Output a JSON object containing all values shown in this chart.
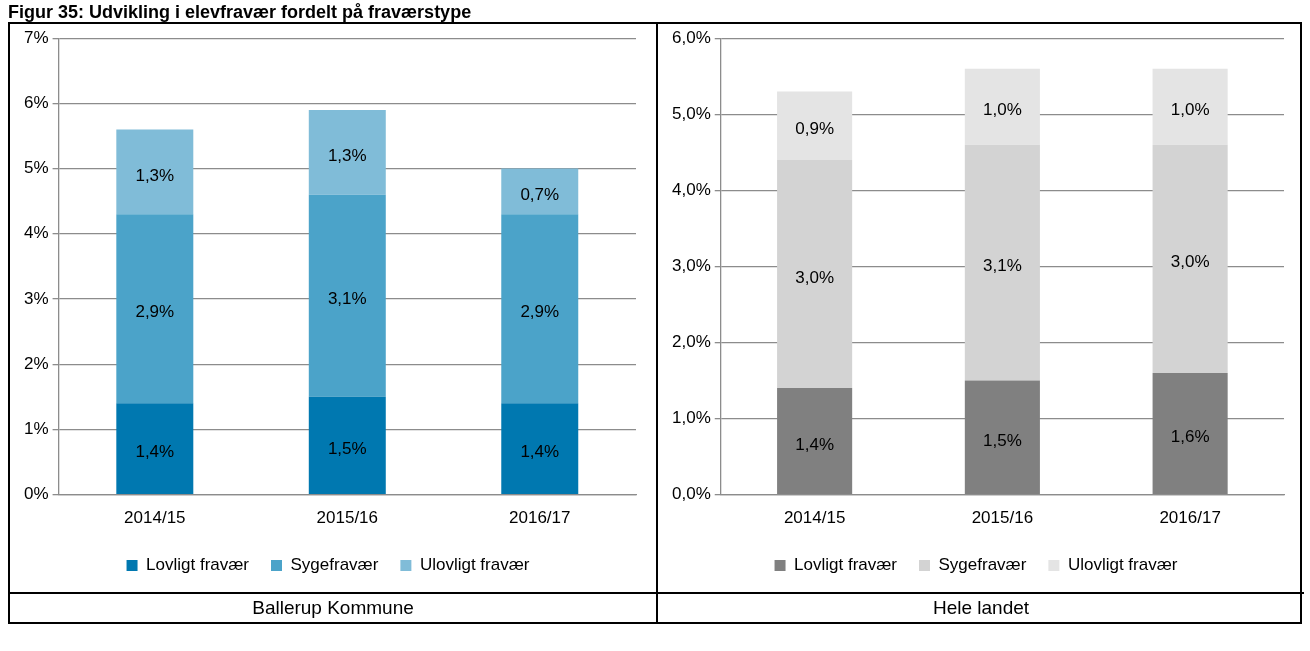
{
  "chart_data": [
    {
      "type": "bar",
      "title": "Figur 35: Udvikling i elevfravær fordelt på fraværstype",
      "stacked": true,
      "categories": [
        "2014/15",
        "2015/16",
        "2016/17"
      ],
      "series": [
        {
          "name": "Lovligt fravær",
          "color": "#0078b0",
          "values": [
            1.4,
            1.5,
            1.4
          ],
          "value_labels": [
            "1,4%",
            "1,5%",
            "1,4%"
          ]
        },
        {
          "name": "Sygefravær",
          "color": "#4ba3c9",
          "values": [
            2.9,
            3.1,
            2.9
          ],
          "value_labels": [
            "2,9%",
            "3,1%",
            "2,9%"
          ]
        },
        {
          "name": "Ulovligt fravær",
          "color": "#80bcd8",
          "values": [
            1.3,
            1.3,
            0.7
          ],
          "value_labels": [
            "1,3%",
            "1,3%",
            "0,7%"
          ]
        }
      ],
      "ylim": [
        0,
        7
      ],
      "yticks": [
        {
          "value": 0,
          "label": "0%"
        },
        {
          "value": 1,
          "label": "1%"
        },
        {
          "value": 2,
          "label": "2%"
        },
        {
          "value": 3,
          "label": "3%"
        },
        {
          "value": 4,
          "label": "4%"
        },
        {
          "value": 5,
          "label": "5%"
        },
        {
          "value": 6,
          "label": "6%"
        },
        {
          "value": 7,
          "label": "7%"
        }
      ],
      "grid": "y",
      "legend": "bottom",
      "annotations": [
        "Ballerup Kommune"
      ]
    },
    {
      "type": "bar",
      "stacked": true,
      "categories": [
        "2014/15",
        "2015/16",
        "2016/17"
      ],
      "series": [
        {
          "name": "Lovligt fravær",
          "color": "#808080",
          "values": [
            1.4,
            1.5,
            1.6
          ],
          "value_labels": [
            "1,4%",
            "1,5%",
            "1,6%"
          ]
        },
        {
          "name": "Sygefravær",
          "color": "#d3d3d3",
          "values": [
            3.0,
            3.1,
            3.0
          ],
          "value_labels": [
            "3,0%",
            "3,1%",
            "3,0%"
          ]
        },
        {
          "name": "Ulovligt fravær",
          "color": "#e4e4e4",
          "values": [
            0.9,
            1.0,
            1.0
          ],
          "value_labels": [
            "0,9%",
            "1,0%",
            "1,0%"
          ]
        }
      ],
      "ylim": [
        0,
        6
      ],
      "yticks": [
        {
          "value": 0,
          "label": "0,0%"
        },
        {
          "value": 1,
          "label": "1,0%"
        },
        {
          "value": 2,
          "label": "2,0%"
        },
        {
          "value": 3,
          "label": "3,0%"
        },
        {
          "value": 4,
          "label": "4,0%"
        },
        {
          "value": 5,
          "label": "5,0%"
        },
        {
          "value": 6,
          "label": "6,0%"
        }
      ],
      "grid": "y",
      "legend": "bottom",
      "annotations": [
        "Hele landet"
      ]
    }
  ]
}
